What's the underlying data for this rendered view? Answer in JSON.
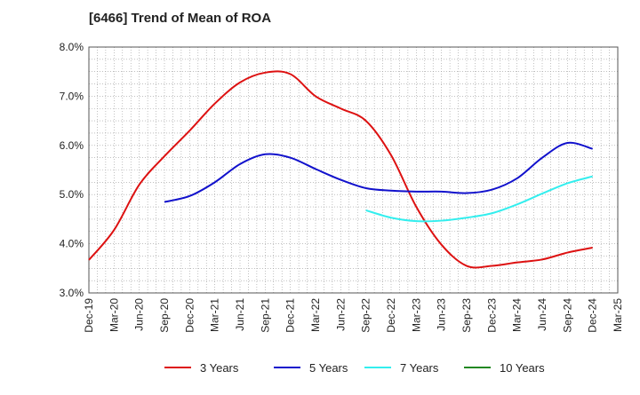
{
  "chart_data": {
    "type": "line",
    "title": "[6466]  Trend of Mean of ROA",
    "xlabel": "",
    "ylabel": "",
    "ylim": [
      3.0,
      8.0
    ],
    "y_ticks": [
      "3.0%",
      "4.0%",
      "5.0%",
      "6.0%",
      "7.0%",
      "8.0%"
    ],
    "x_ticks": [
      "Dec-19",
      "Mar-20",
      "Jun-20",
      "Sep-20",
      "Dec-20",
      "Mar-21",
      "Jun-21",
      "Sep-21",
      "Dec-21",
      "Mar-22",
      "Jun-22",
      "Sep-22",
      "Dec-22",
      "Mar-23",
      "Jun-23",
      "Sep-23",
      "Dec-23",
      "Mar-24",
      "Jun-24",
      "Sep-24",
      "Dec-24",
      "Mar-25"
    ],
    "grid": true,
    "legend_position": "bottom",
    "series": [
      {
        "name": "3 Years",
        "color": "#dd1111",
        "values": [
          [
            0,
            3.67
          ],
          [
            1,
            4.28
          ],
          [
            2,
            5.2
          ],
          [
            3,
            5.78
          ],
          [
            4,
            6.3
          ],
          [
            5,
            6.85
          ],
          [
            6,
            7.28
          ],
          [
            7,
            7.48
          ],
          [
            8,
            7.45
          ],
          [
            9,
            7.0
          ],
          [
            10,
            6.75
          ],
          [
            11,
            6.5
          ],
          [
            12,
            5.8
          ],
          [
            13,
            4.75
          ],
          [
            14,
            3.98
          ],
          [
            15,
            3.55
          ],
          [
            16,
            3.55
          ],
          [
            17,
            3.62
          ],
          [
            18,
            3.68
          ],
          [
            19,
            3.82
          ],
          [
            20,
            3.92
          ]
        ]
      },
      {
        "name": "5 Years",
        "color": "#1111cc",
        "values": [
          [
            3,
            4.85
          ],
          [
            4,
            4.97
          ],
          [
            5,
            5.25
          ],
          [
            6,
            5.62
          ],
          [
            7,
            5.82
          ],
          [
            8,
            5.75
          ],
          [
            9,
            5.52
          ],
          [
            10,
            5.3
          ],
          [
            11,
            5.13
          ],
          [
            12,
            5.08
          ],
          [
            13,
            5.06
          ],
          [
            14,
            5.06
          ],
          [
            15,
            5.03
          ],
          [
            16,
            5.1
          ],
          [
            17,
            5.33
          ],
          [
            18,
            5.75
          ],
          [
            19,
            6.05
          ],
          [
            20,
            5.93
          ]
        ]
      },
      {
        "name": "7 Years",
        "color": "#33eeee",
        "values": [
          [
            11,
            4.68
          ],
          [
            12,
            4.53
          ],
          [
            13,
            4.46
          ],
          [
            14,
            4.47
          ],
          [
            15,
            4.53
          ],
          [
            16,
            4.62
          ],
          [
            17,
            4.8
          ],
          [
            18,
            5.02
          ],
          [
            19,
            5.23
          ],
          [
            20,
            5.37
          ]
        ]
      },
      {
        "name": "10 Years",
        "color": "#228822",
        "values": []
      }
    ]
  }
}
